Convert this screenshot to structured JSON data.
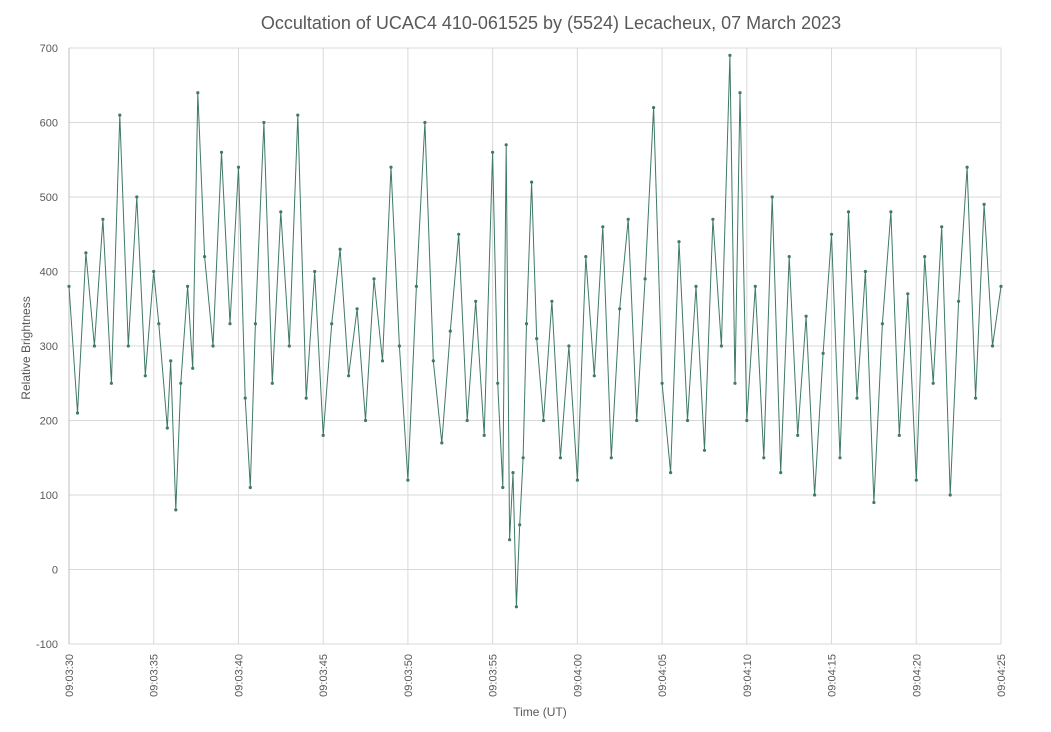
{
  "chart_data": {
    "type": "line",
    "title": "Occultation of UCAC4 410-061525 by (5524) Lecacheux, 07 March 2023",
    "xlabel": "Time (UT)",
    "ylabel": "Relative Brightness",
    "ylim": [
      -100,
      700
    ],
    "yticks": [
      "-100",
      "0",
      "100",
      "200",
      "300",
      "400",
      "500",
      "600",
      "700"
    ],
    "xlim": [
      "09:03:30",
      "09:04:25"
    ],
    "xticks": [
      "09:03:30",
      "09:03:35",
      "09:03:40",
      "09:03:45",
      "09:03:50",
      "09:03:55",
      "09:04:00",
      "09:04:05",
      "09:04:10",
      "09:04:15",
      "09:04:20",
      "09:04:25"
    ],
    "grid": true,
    "legend": "none",
    "series": [
      {
        "color": "#3f7a66",
        "marker": "small-dot",
        "points": [
          [
            "09:03:30.0",
            380
          ],
          [
            "09:03:30.5",
            210
          ],
          [
            "09:03:31.0",
            425
          ],
          [
            "09:03:31.5",
            300
          ],
          [
            "09:03:32.0",
            470
          ],
          [
            "09:03:32.5",
            250
          ],
          [
            "09:03:33.0",
            610
          ],
          [
            "09:03:33.5",
            300
          ],
          [
            "09:03:34.0",
            500
          ],
          [
            "09:03:34.5",
            260
          ],
          [
            "09:03:35.0",
            400
          ],
          [
            "09:03:35.3",
            330
          ],
          [
            "09:03:35.8",
            190
          ],
          [
            "09:03:36.0",
            280
          ],
          [
            "09:03:36.3",
            80
          ],
          [
            "09:03:36.6",
            250
          ],
          [
            "09:03:37.0",
            380
          ],
          [
            "09:03:37.3",
            270
          ],
          [
            "09:03:37.6",
            640
          ],
          [
            "09:03:38.0",
            420
          ],
          [
            "09:03:38.5",
            300
          ],
          [
            "09:03:39.0",
            560
          ],
          [
            "09:03:39.5",
            330
          ],
          [
            "09:03:40.0",
            540
          ],
          [
            "09:03:40.4",
            230
          ],
          [
            "09:03:40.7",
            110
          ],
          [
            "09:03:41.0",
            330
          ],
          [
            "09:03:41.5",
            600
          ],
          [
            "09:03:42.0",
            250
          ],
          [
            "09:03:42.5",
            480
          ],
          [
            "09:03:43.0",
            300
          ],
          [
            "09:03:43.5",
            610
          ],
          [
            "09:03:44.0",
            230
          ],
          [
            "09:03:44.5",
            400
          ],
          [
            "09:03:45.0",
            180
          ],
          [
            "09:03:45.5",
            330
          ],
          [
            "09:03:46.0",
            430
          ],
          [
            "09:03:46.5",
            260
          ],
          [
            "09:03:47.0",
            350
          ],
          [
            "09:03:47.5",
            200
          ],
          [
            "09:03:48.0",
            390
          ],
          [
            "09:03:48.5",
            280
          ],
          [
            "09:03:49.0",
            540
          ],
          [
            "09:03:49.5",
            300
          ],
          [
            "09:03:50.0",
            120
          ],
          [
            "09:03:50.5",
            380
          ],
          [
            "09:03:51.0",
            600
          ],
          [
            "09:03:51.5",
            280
          ],
          [
            "09:03:52.0",
            170
          ],
          [
            "09:03:52.5",
            320
          ],
          [
            "09:03:53.0",
            450
          ],
          [
            "09:03:53.5",
            200
          ],
          [
            "09:03:54.0",
            360
          ],
          [
            "09:03:54.5",
            180
          ],
          [
            "09:03:55.0",
            560
          ],
          [
            "09:03:55.3",
            250
          ],
          [
            "09:03:55.6",
            110
          ],
          [
            "09:03:55.8",
            570
          ],
          [
            "09:03:56.0",
            40
          ],
          [
            "09:03:56.2",
            130
          ],
          [
            "09:03:56.4",
            -50
          ],
          [
            "09:03:56.6",
            60
          ],
          [
            "09:03:56.8",
            150
          ],
          [
            "09:03:57.0",
            330
          ],
          [
            "09:03:57.3",
            520
          ],
          [
            "09:03:57.6",
            310
          ],
          [
            "09:03:58.0",
            200
          ],
          [
            "09:03:58.5",
            360
          ],
          [
            "09:03:59.0",
            150
          ],
          [
            "09:03:59.5",
            300
          ],
          [
            "09:04:00.0",
            120
          ],
          [
            "09:04:00.5",
            420
          ],
          [
            "09:04:01.0",
            260
          ],
          [
            "09:04:01.5",
            460
          ],
          [
            "09:04:02.0",
            150
          ],
          [
            "09:04:02.5",
            350
          ],
          [
            "09:04:03.0",
            470
          ],
          [
            "09:04:03.5",
            200
          ],
          [
            "09:04:04.0",
            390
          ],
          [
            "09:04:04.5",
            620
          ],
          [
            "09:04:05.0",
            250
          ],
          [
            "09:04:05.5",
            130
          ],
          [
            "09:04:06.0",
            440
          ],
          [
            "09:04:06.5",
            200
          ],
          [
            "09:04:07.0",
            380
          ],
          [
            "09:04:07.5",
            160
          ],
          [
            "09:04:08.0",
            470
          ],
          [
            "09:04:08.5",
            300
          ],
          [
            "09:04:09.0",
            690
          ],
          [
            "09:04:09.3",
            250
          ],
          [
            "09:04:09.6",
            640
          ],
          [
            "09:04:10.0",
            200
          ],
          [
            "09:04:10.5",
            380
          ],
          [
            "09:04:11.0",
            150
          ],
          [
            "09:04:11.5",
            500
          ],
          [
            "09:04:12.0",
            130
          ],
          [
            "09:04:12.5",
            420
          ],
          [
            "09:04:13.0",
            180
          ],
          [
            "09:04:13.5",
            340
          ],
          [
            "09:04:14.0",
            100
          ],
          [
            "09:04:14.5",
            290
          ],
          [
            "09:04:15.0",
            450
          ],
          [
            "09:04:15.5",
            150
          ],
          [
            "09:04:16.0",
            480
          ],
          [
            "09:04:16.5",
            230
          ],
          [
            "09:04:17.0",
            400
          ],
          [
            "09:04:17.5",
            90
          ],
          [
            "09:04:18.0",
            330
          ],
          [
            "09:04:18.5",
            480
          ],
          [
            "09:04:19.0",
            180
          ],
          [
            "09:04:19.5",
            370
          ],
          [
            "09:04:20.0",
            120
          ],
          [
            "09:04:20.5",
            420
          ],
          [
            "09:04:21.0",
            250
          ],
          [
            "09:04:21.5",
            460
          ],
          [
            "09:04:22.0",
            100
          ],
          [
            "09:04:22.5",
            360
          ],
          [
            "09:04:23.0",
            540
          ],
          [
            "09:04:23.5",
            230
          ],
          [
            "09:04:24.0",
            490
          ],
          [
            "09:04:24.5",
            300
          ],
          [
            "09:04:25.0",
            380
          ]
        ]
      }
    ]
  }
}
